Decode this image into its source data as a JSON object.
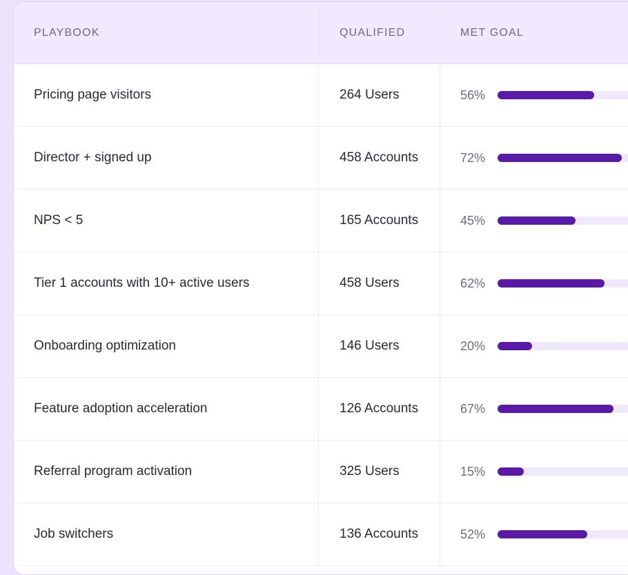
{
  "colors": {
    "page_background": "#ece2fb",
    "header_background": "#f1e9fd",
    "bar_fill": "#5a1aa8",
    "bar_track": "#f0e8fb",
    "accent_arc": "#6a22d6"
  },
  "table": {
    "columns": [
      "PLAYBOOK",
      "QUALIFIED",
      "MET GOAL"
    ],
    "rows": [
      {
        "playbook": "Pricing page visitors",
        "qualified": "264 Users",
        "met_goal": "56%",
        "met_goal_value": 56
      },
      {
        "playbook": "Director + signed up",
        "qualified": "458 Accounts",
        "met_goal": "72%",
        "met_goal_value": 72
      },
      {
        "playbook": "NPS < 5",
        "qualified": "165 Accounts",
        "met_goal": "45%",
        "met_goal_value": 45
      },
      {
        "playbook": "Tier 1 accounts with 10+ active users",
        "qualified": "458 Users",
        "met_goal": "62%",
        "met_goal_value": 62
      },
      {
        "playbook": "Onboarding optimization",
        "qualified": "146 Users",
        "met_goal": "20%",
        "met_goal_value": 20
      },
      {
        "playbook": "Feature adoption acceleration",
        "qualified": "126 Accounts",
        "met_goal": "67%",
        "met_goal_value": 67
      },
      {
        "playbook": "Referral program activation",
        "qualified": "325 Users",
        "met_goal": "15%",
        "met_goal_value": 15
      },
      {
        "playbook": "Job switchers",
        "qualified": "136 Accounts",
        "met_goal": "52%",
        "met_goal_value": 52
      }
    ]
  }
}
